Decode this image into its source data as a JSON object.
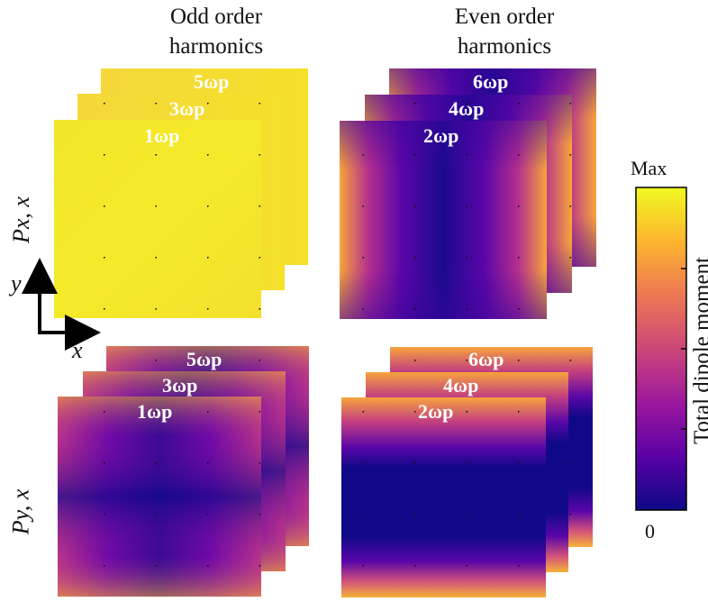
{
  "headers": {
    "odd_line1": "Odd order",
    "odd_line2": "harmonics",
    "even_line1": "Even order",
    "even_line2": "harmonics"
  },
  "rows": {
    "top_label": "Px, x",
    "bottom_label": "Py, x"
  },
  "axes": {
    "x": "x",
    "y": "y"
  },
  "panels": {
    "top_odd": [
      "5ωp",
      "3ωp",
      "1ωp"
    ],
    "top_even": [
      "6ωp",
      "4ωp",
      "2ωp"
    ],
    "bottom_odd": [
      "5ωp",
      "3ωp",
      "1ωp"
    ],
    "bottom_even": [
      "6ωp",
      "4ωp",
      "2ωp"
    ]
  },
  "colorbar": {
    "label": "Total dipole moment",
    "max_label": "Max",
    "min_label": "0",
    "colormap": "plasma",
    "stops": [
      "#0d0887",
      "#5c01a6",
      "#9c179e",
      "#cc4778",
      "#ed7953",
      "#fdb42f",
      "#f0f921"
    ]
  }
}
